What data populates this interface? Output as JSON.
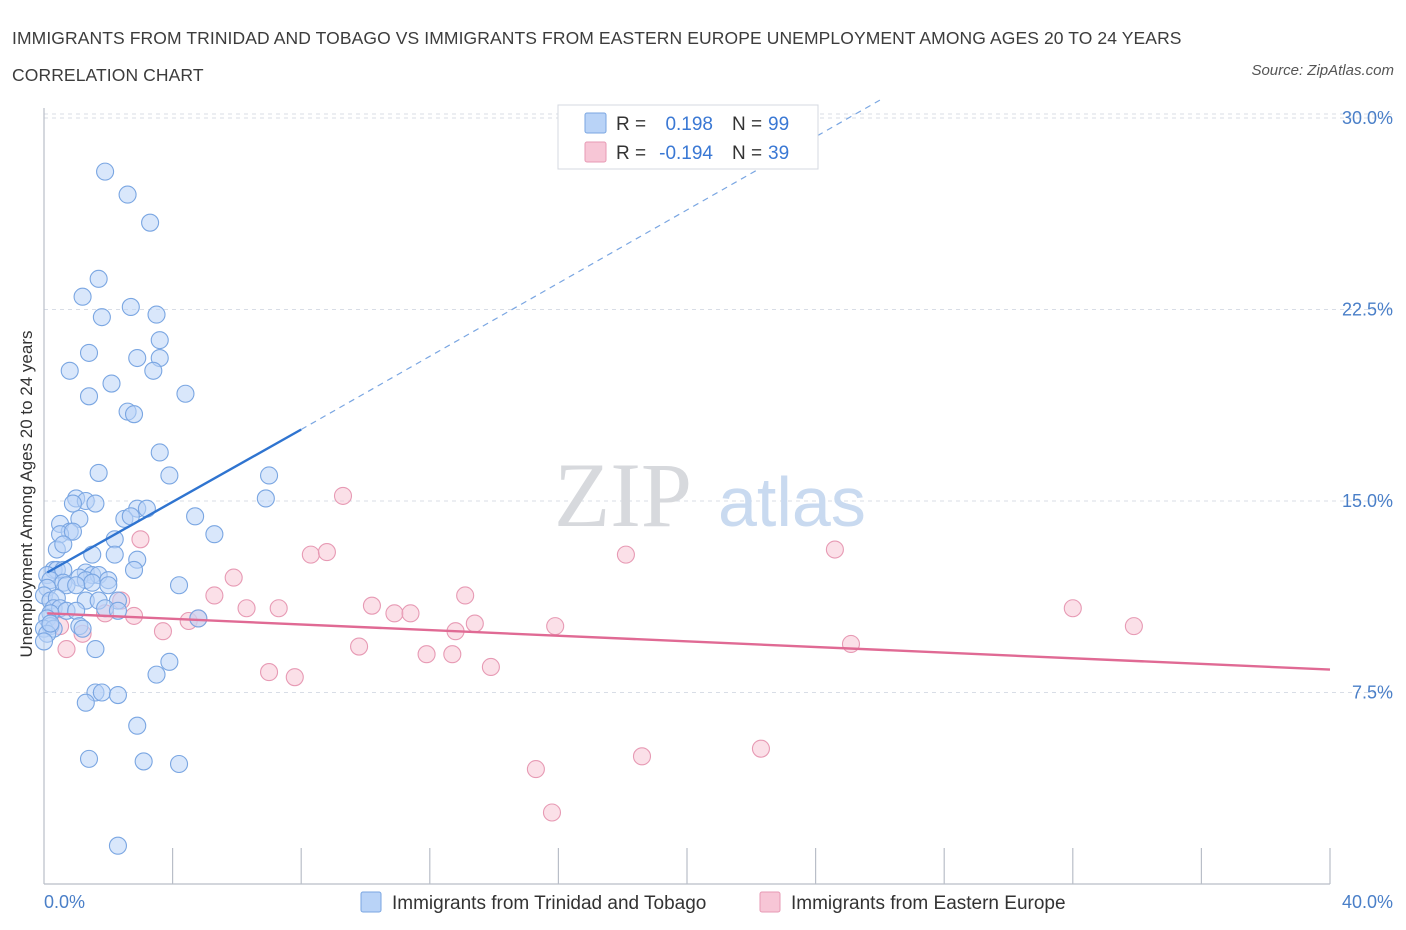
{
  "header": {
    "title": "IMMIGRANTS FROM TRINIDAD AND TOBAGO VS IMMIGRANTS FROM EASTERN EUROPE UNEMPLOYMENT AMONG AGES 20 TO 24 YEARS CORRELATION CHART",
    "source": "Source: ZipAtlas.com"
  },
  "watermark": {
    "zip": "ZIP",
    "atlas": "atlas"
  },
  "colors": {
    "blue": "#4a86d8",
    "blue_fill": "#b9d3f7",
    "pink": "#e8709a",
    "pink_fill": "#f7c6d6",
    "axis_label": "#4a7fc8",
    "grid": "#d8dde6"
  },
  "chart_data": {
    "type": "scatter",
    "title": "IMMIGRANTS FROM TRINIDAD AND TOBAGO VS IMMIGRANTS FROM EASTERN EUROPE UNEMPLOYMENT AMONG AGES 20 TO 24 YEARS CORRELATION CHART",
    "xlabel": "",
    "ylabel": "Unemployment Among Ages 20 to 24 years",
    "xlim": [
      0,
      40
    ],
    "ylim": [
      0,
      30
    ],
    "x_tick_labels": [
      "0.0%",
      "40.0%"
    ],
    "y_ticks": [
      7.5,
      15.0,
      22.5,
      30.0
    ],
    "y_tick_labels": [
      "7.5%",
      "15.0%",
      "22.5%",
      "30.0%"
    ],
    "grid": true,
    "legend_placement": "top-center",
    "legend": [
      {
        "r_label": "R =",
        "r_value": "0.198",
        "n_label": "N =",
        "n_value": "99"
      },
      {
        "r_label": "R =",
        "r_value": "-0.194",
        "n_label": "N =",
        "n_value": "39"
      }
    ],
    "series": [
      {
        "name": "Immigrants from Trinidad and Tobago",
        "color": "#4a86d8",
        "trend": {
          "x0": 0.1,
          "y0": 12.2,
          "x1": 8.0,
          "y1": 17.8,
          "dashed_to_x": 26.0,
          "dashed_to_y": 30.7
        },
        "points": [
          [
            1.9,
            27.9
          ],
          [
            2.6,
            27.0
          ],
          [
            3.3,
            25.9
          ],
          [
            1.7,
            23.7
          ],
          [
            1.2,
            23.0
          ],
          [
            2.7,
            22.6
          ],
          [
            1.8,
            22.2
          ],
          [
            3.5,
            22.3
          ],
          [
            1.4,
            20.8
          ],
          [
            2.9,
            20.6
          ],
          [
            3.6,
            20.6
          ],
          [
            3.6,
            21.3
          ],
          [
            0.8,
            20.1
          ],
          [
            3.4,
            20.1
          ],
          [
            2.1,
            19.6
          ],
          [
            1.4,
            19.1
          ],
          [
            4.4,
            19.2
          ],
          [
            2.6,
            18.5
          ],
          [
            2.8,
            18.4
          ],
          [
            3.6,
            16.9
          ],
          [
            1.7,
            16.1
          ],
          [
            3.9,
            16.0
          ],
          [
            7.0,
            16.0
          ],
          [
            6.9,
            15.1
          ],
          [
            1.0,
            15.1
          ],
          [
            1.3,
            15.0
          ],
          [
            0.9,
            14.9
          ],
          [
            1.6,
            14.9
          ],
          [
            1.1,
            14.3
          ],
          [
            0.5,
            14.1
          ],
          [
            0.8,
            13.8
          ],
          [
            2.9,
            14.7
          ],
          [
            3.2,
            14.7
          ],
          [
            2.5,
            14.3
          ],
          [
            2.7,
            14.4
          ],
          [
            4.7,
            14.4
          ],
          [
            5.3,
            13.7
          ],
          [
            2.2,
            13.5
          ],
          [
            0.5,
            13.7
          ],
          [
            0.9,
            13.8
          ],
          [
            0.4,
            13.1
          ],
          [
            0.6,
            13.3
          ],
          [
            1.5,
            12.9
          ],
          [
            2.2,
            12.9
          ],
          [
            2.9,
            12.7
          ],
          [
            0.3,
            12.3
          ],
          [
            0.4,
            12.3
          ],
          [
            0.6,
            12.3
          ],
          [
            1.3,
            12.2
          ],
          [
            1.5,
            12.1
          ],
          [
            0.1,
            12.1
          ],
          [
            1.1,
            12.0
          ],
          [
            1.7,
            12.1
          ],
          [
            2.8,
            12.3
          ],
          [
            0.2,
            11.9
          ],
          [
            0.6,
            11.8
          ],
          [
            1.3,
            11.9
          ],
          [
            1.5,
            11.8
          ],
          [
            2.0,
            11.9
          ],
          [
            0.1,
            11.6
          ],
          [
            0.7,
            11.7
          ],
          [
            1.0,
            11.7
          ],
          [
            2.0,
            11.7
          ],
          [
            4.2,
            11.7
          ],
          [
            0.0,
            11.3
          ],
          [
            0.2,
            11.1
          ],
          [
            0.4,
            11.2
          ],
          [
            1.3,
            11.1
          ],
          [
            1.7,
            11.1
          ],
          [
            2.3,
            11.1
          ],
          [
            0.3,
            10.8
          ],
          [
            0.5,
            10.8
          ],
          [
            0.7,
            10.7
          ],
          [
            1.0,
            10.7
          ],
          [
            0.2,
            10.6
          ],
          [
            1.9,
            10.8
          ],
          [
            2.3,
            10.7
          ],
          [
            0.1,
            10.4
          ],
          [
            0.2,
            10.1
          ],
          [
            0.0,
            10.0
          ],
          [
            0.3,
            10.0
          ],
          [
            1.1,
            10.1
          ],
          [
            1.2,
            10.0
          ],
          [
            4.8,
            10.4
          ],
          [
            1.6,
            9.2
          ],
          [
            3.9,
            8.7
          ],
          [
            3.5,
            8.2
          ],
          [
            1.6,
            7.5
          ],
          [
            1.8,
            7.5
          ],
          [
            2.3,
            7.4
          ],
          [
            1.3,
            7.1
          ],
          [
            2.9,
            6.2
          ],
          [
            1.4,
            4.9
          ],
          [
            3.1,
            4.8
          ],
          [
            4.2,
            4.7
          ],
          [
            2.3,
            1.5
          ],
          [
            0.1,
            9.8
          ],
          [
            0.0,
            9.5
          ],
          [
            0.2,
            10.2
          ]
        ]
      },
      {
        "name": "Immigrants from Eastern Europe",
        "color": "#e8709a",
        "trend": {
          "x0": 0.1,
          "y0": 10.6,
          "x1": 40.0,
          "y1": 8.4
        },
        "points": [
          [
            3.0,
            13.5
          ],
          [
            8.3,
            12.9
          ],
          [
            8.8,
            13.0
          ],
          [
            9.3,
            15.2
          ],
          [
            18.1,
            12.9
          ],
          [
            24.6,
            13.1
          ],
          [
            5.9,
            12.0
          ],
          [
            5.3,
            11.3
          ],
          [
            2.4,
            11.1
          ],
          [
            6.3,
            10.8
          ],
          [
            7.3,
            10.8
          ],
          [
            10.2,
            10.9
          ],
          [
            10.9,
            10.6
          ],
          [
            11.4,
            10.6
          ],
          [
            13.1,
            11.3
          ],
          [
            13.4,
            10.2
          ],
          [
            15.9,
            10.1
          ],
          [
            32.0,
            10.8
          ],
          [
            33.9,
            10.1
          ],
          [
            1.9,
            10.6
          ],
          [
            2.8,
            10.5
          ],
          [
            4.5,
            10.3
          ],
          [
            4.8,
            10.4
          ],
          [
            3.7,
            9.9
          ],
          [
            12.8,
            9.9
          ],
          [
            0.5,
            10.1
          ],
          [
            1.2,
            9.8
          ],
          [
            9.8,
            9.3
          ],
          [
            11.9,
            9.0
          ],
          [
            12.7,
            9.0
          ],
          [
            25.1,
            9.4
          ],
          [
            0.7,
            9.2
          ],
          [
            7.0,
            8.3
          ],
          [
            7.8,
            8.1
          ],
          [
            13.9,
            8.5
          ],
          [
            18.6,
            5.0
          ],
          [
            22.3,
            5.3
          ],
          [
            15.3,
            4.5
          ],
          [
            15.8,
            2.8
          ]
        ]
      }
    ]
  }
}
